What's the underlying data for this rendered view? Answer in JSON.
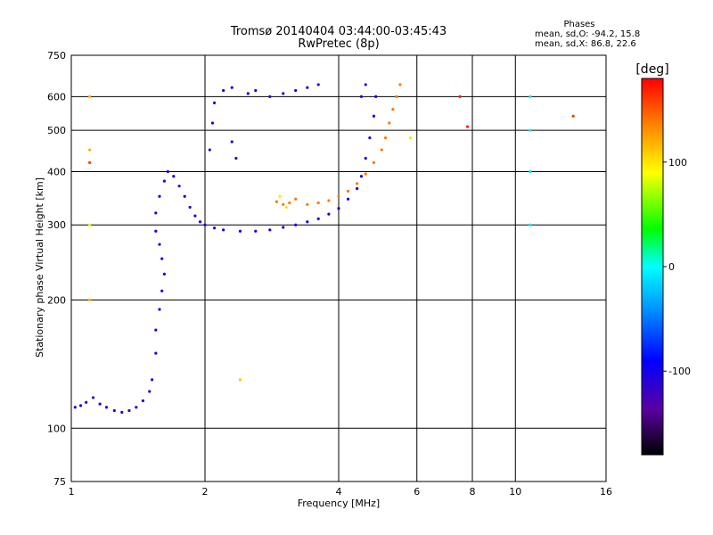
{
  "header": {
    "title_line1": "Tromsø 20140404 03:44:00-03:45:43",
    "title_line2": "RwPretec (8p)"
  },
  "phase_stats": {
    "heading": "Phases",
    "line_o": "mean, sd,O: -94.2, 15.8",
    "line_x": "mean, sd,X:  86.8, 22.6"
  },
  "colorbar": {
    "label": "[deg]",
    "ticks": [
      {
        "value": 100,
        "label": "100"
      },
      {
        "value": 0,
        "label": "0"
      },
      {
        "value": -100,
        "label": "-100"
      }
    ],
    "range": [
      -180,
      180
    ]
  },
  "chart_data": {
    "type": "scatter",
    "title": "Tromsø 20140404 03:44:00-03:45:43",
    "subtitle": "RwPretec (8p)",
    "xlabel": "Frequency [MHz]",
    "ylabel": "Stationary phase Virtual Height [km]",
    "x_scale": "log",
    "y_scale": "log",
    "xlim": [
      1,
      16
    ],
    "ylim": [
      75,
      750
    ],
    "x_ticks": [
      1,
      2,
      4,
      6,
      8,
      10,
      16
    ],
    "y_ticks": [
      75,
      100,
      200,
      300,
      400,
      500,
      600,
      750
    ],
    "grid": true,
    "color_scale": "phase in degrees",
    "series": [
      {
        "points": [
          [
            1.02,
            112,
            -110
          ],
          [
            1.05,
            113,
            -110
          ],
          [
            1.08,
            115,
            -110
          ],
          [
            1.12,
            118,
            -110
          ],
          [
            1.16,
            114,
            -110
          ],
          [
            1.2,
            112,
            -110
          ],
          [
            1.25,
            110,
            -110
          ],
          [
            1.3,
            109,
            -110
          ],
          [
            1.35,
            110,
            -110
          ],
          [
            1.4,
            112,
            -110
          ],
          [
            1.45,
            116,
            -105
          ],
          [
            1.5,
            122,
            -105
          ],
          [
            1.52,
            130,
            -105
          ],
          [
            1.55,
            150,
            -105
          ],
          [
            1.55,
            170,
            -105
          ],
          [
            1.58,
            190,
            -105
          ],
          [
            1.6,
            210,
            -105
          ],
          [
            1.62,
            230,
            -105
          ],
          [
            1.6,
            250,
            -105
          ],
          [
            1.58,
            270,
            -105
          ],
          [
            1.55,
            290,
            -105
          ],
          [
            1.55,
            320,
            -105
          ],
          [
            1.58,
            350,
            -105
          ],
          [
            1.62,
            380,
            -105
          ],
          [
            1.65,
            400,
            -105
          ],
          [
            1.7,
            390,
            -105
          ],
          [
            1.75,
            370,
            -105
          ],
          [
            1.8,
            350,
            -105
          ],
          [
            1.85,
            330,
            -105
          ],
          [
            1.9,
            315,
            -105
          ],
          [
            1.95,
            305,
            -105
          ],
          [
            2.0,
            300,
            -105
          ],
          [
            2.1,
            295,
            -105
          ],
          [
            2.2,
            292,
            -105
          ],
          [
            2.4,
            290,
            -105
          ],
          [
            2.6,
            290,
            -105
          ],
          [
            2.8,
            292,
            -105
          ],
          [
            3.0,
            296,
            -105
          ],
          [
            3.2,
            300,
            -105
          ],
          [
            3.4,
            305,
            -100
          ],
          [
            3.6,
            310,
            -100
          ],
          [
            3.8,
            318,
            -100
          ],
          [
            4.0,
            328,
            -100
          ],
          [
            4.2,
            345,
            -100
          ],
          [
            4.4,
            365,
            -100
          ],
          [
            4.5,
            390,
            -100
          ],
          [
            4.6,
            430,
            -100
          ],
          [
            4.7,
            480,
            -100
          ],
          [
            4.8,
            540,
            -100
          ],
          [
            4.85,
            600,
            -100
          ],
          [
            2.05,
            450,
            -110
          ],
          [
            2.08,
            520,
            -110
          ],
          [
            2.1,
            580,
            -110
          ],
          [
            2.2,
            620,
            -110
          ],
          [
            2.3,
            630,
            -110
          ],
          [
            2.5,
            610,
            -110
          ],
          [
            2.6,
            620,
            -110
          ],
          [
            2.8,
            600,
            -110
          ],
          [
            3.0,
            610,
            -110
          ],
          [
            3.2,
            620,
            -110
          ],
          [
            3.4,
            630,
            -110
          ],
          [
            3.6,
            640,
            -110
          ],
          [
            2.3,
            470,
            -110
          ],
          [
            2.35,
            430,
            -110
          ],
          [
            4.5,
            600,
            -110
          ],
          [
            4.6,
            640,
            -110
          ],
          [
            10.8,
            600,
            -10
          ],
          [
            10.8,
            500,
            -10
          ],
          [
            10.8,
            400,
            -10
          ],
          [
            10.8,
            300,
            -10
          ]
        ]
      },
      {
        "points": [
          [
            2.9,
            340,
            140
          ],
          [
            3.0,
            335,
            140
          ],
          [
            3.1,
            338,
            140
          ],
          [
            3.2,
            345,
            140
          ],
          [
            3.4,
            335,
            140
          ],
          [
            3.6,
            338,
            140
          ],
          [
            3.8,
            342,
            140
          ],
          [
            4.0,
            350,
            140
          ],
          [
            4.2,
            360,
            140
          ],
          [
            4.4,
            375,
            140
          ],
          [
            4.6,
            395,
            140
          ],
          [
            4.8,
            420,
            140
          ],
          [
            5.0,
            450,
            140
          ],
          [
            5.1,
            480,
            140
          ],
          [
            5.2,
            520,
            140
          ],
          [
            5.3,
            560,
            140
          ],
          [
            5.4,
            600,
            140
          ],
          [
            5.5,
            640,
            140
          ],
          [
            2.95,
            350,
            100
          ],
          [
            3.05,
            330,
            100
          ],
          [
            1.1,
            600,
            120
          ],
          [
            1.1,
            450,
            120
          ],
          [
            1.1,
            420,
            160
          ],
          [
            1.1,
            300,
            80
          ],
          [
            1.1,
            200,
            120
          ],
          [
            2.4,
            130,
            110
          ],
          [
            5.8,
            480,
            80
          ],
          [
            13.5,
            540,
            160
          ],
          [
            7.5,
            600,
            170
          ],
          [
            7.8,
            510,
            170
          ]
        ]
      }
    ]
  }
}
